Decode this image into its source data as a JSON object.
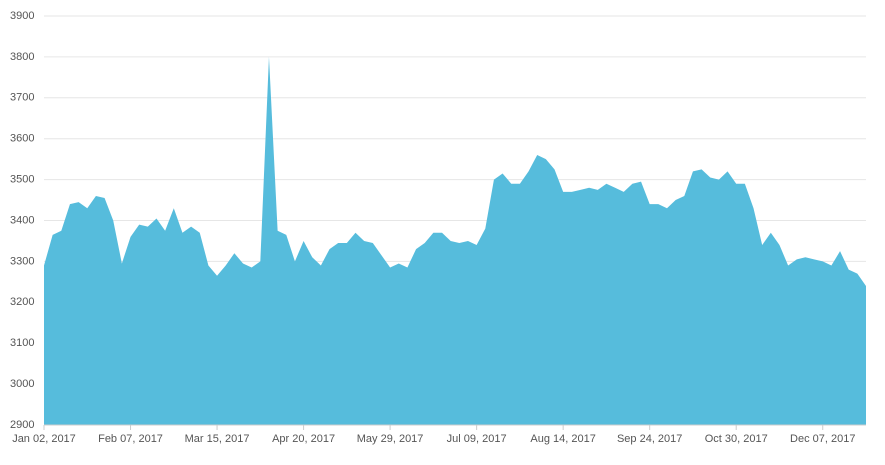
{
  "chart_data": {
    "type": "area",
    "color": "#56bcdc",
    "grid": true,
    "categories": [
      "Jan 02, 2017",
      null,
      null,
      null,
      null,
      null,
      null,
      null,
      null,
      null,
      "Feb 07, 2017",
      null,
      null,
      null,
      null,
      null,
      null,
      null,
      null,
      null,
      "Mar 15, 2017",
      null,
      null,
      null,
      null,
      null,
      null,
      null,
      null,
      null,
      "Apr 20, 2017",
      null,
      null,
      null,
      null,
      null,
      null,
      null,
      null,
      null,
      "May 29, 2017",
      null,
      null,
      null,
      null,
      null,
      null,
      null,
      null,
      null,
      "Jul 09, 2017",
      null,
      null,
      null,
      null,
      null,
      null,
      null,
      null,
      null,
      "Aug 14, 2017",
      null,
      null,
      null,
      null,
      null,
      null,
      null,
      null,
      null,
      "Sep 24, 2017",
      null,
      null,
      null,
      null,
      null,
      null,
      null,
      null,
      null,
      "Oct 30, 2017",
      null,
      null,
      null,
      null,
      null,
      null,
      null,
      null,
      null,
      "Dec 07, 2017",
      null,
      null,
      null,
      null,
      null
    ],
    "values": [
      3290,
      3365,
      3375,
      3440,
      3445,
      3430,
      3460,
      3455,
      3400,
      3295,
      3360,
      3390,
      3385,
      3405,
      3375,
      3430,
      3370,
      3385,
      3370,
      3290,
      3265,
      3290,
      3320,
      3295,
      3285,
      3300,
      3800,
      3375,
      3365,
      3300,
      3350,
      3310,
      3290,
      3330,
      3345,
      3345,
      3370,
      3350,
      3345,
      3315,
      3285,
      3295,
      3285,
      3330,
      3345,
      3370,
      3370,
      3350,
      3345,
      3350,
      3340,
      3380,
      3500,
      3515,
      3490,
      3490,
      3520,
      3560,
      3550,
      3525,
      3470,
      3470,
      3475,
      3480,
      3475,
      3490,
      3480,
      3470,
      3490,
      3495,
      3440,
      3440,
      3430,
      3450,
      3460,
      3520,
      3525,
      3505,
      3500,
      3520,
      3490,
      3490,
      3430,
      3340,
      3370,
      3340,
      3290,
      3305,
      3310,
      3305,
      3300,
      3290,
      3325,
      3280,
      3270,
      3240
    ],
    "ylim": [
      2900,
      3900
    ],
    "yticks": [
      2900,
      3000,
      3100,
      3200,
      3300,
      3400,
      3500,
      3600,
      3700,
      3800,
      3900
    ]
  }
}
